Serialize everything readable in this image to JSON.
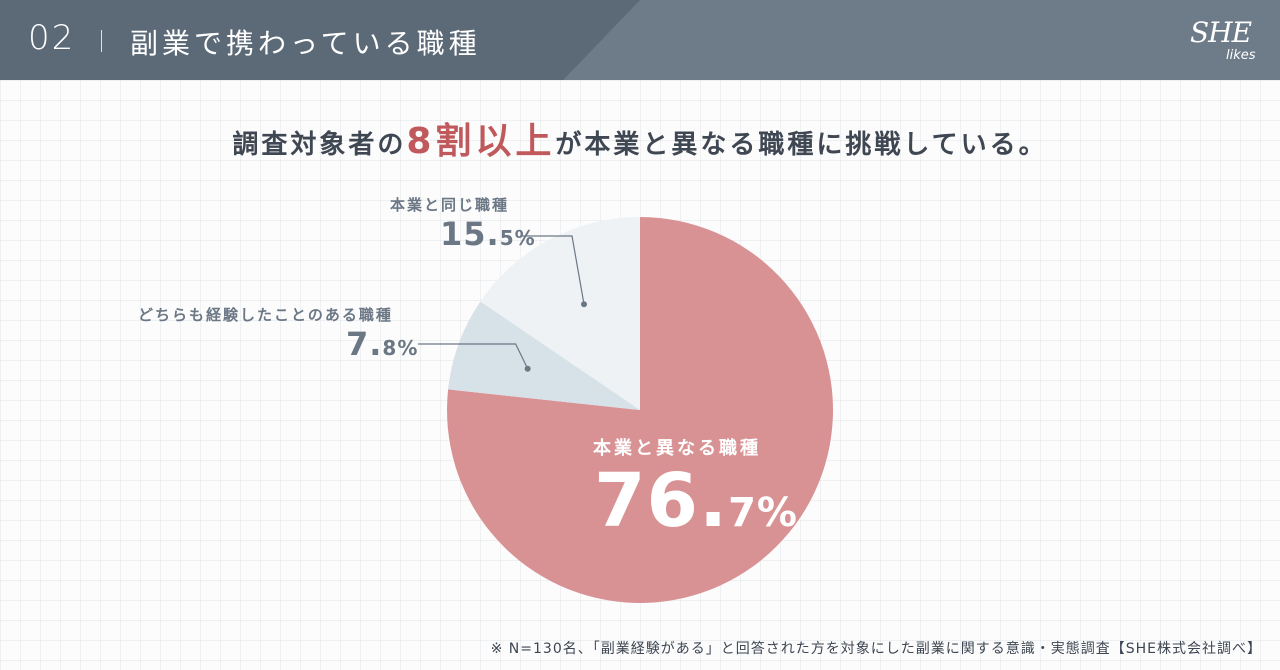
{
  "header": {
    "section_number": "02",
    "title": "副業で携わっている職種",
    "logo_main": "SHE",
    "logo_sub": "likes"
  },
  "headline": {
    "before": "調査対象者の",
    "emphasis": "8割以上",
    "after": "が本業と異なる職種に挑戦している。"
  },
  "footnote": "※ N=130名、「副業経験がある」と回答された方を対象にした副業に関する意識・実態調査【SHE株式会社調べ】",
  "colors": {
    "header_dark": "#5c6977",
    "header_light": "#6e7b88",
    "accent": "#c0595c",
    "slice_main": "#d99294",
    "slice_both": "#d6e1e8",
    "slice_same": "#eef2f5"
  },
  "chart_data": {
    "type": "pie",
    "slices": [
      {
        "label": "本業と異なる職種",
        "value": 76.7,
        "value_text": "76.",
        "value_decimal": "7%",
        "color": "#d99294"
      },
      {
        "label": "どちらも経験したことのある職種",
        "value": 7.8,
        "value_text": "7.",
        "value_decimal": "8%",
        "color": "#d6e1e8"
      },
      {
        "label": "本業と同じ職種",
        "value": 15.5,
        "value_text": "15.",
        "value_decimal": "5%",
        "color": "#eef2f5"
      }
    ]
  }
}
